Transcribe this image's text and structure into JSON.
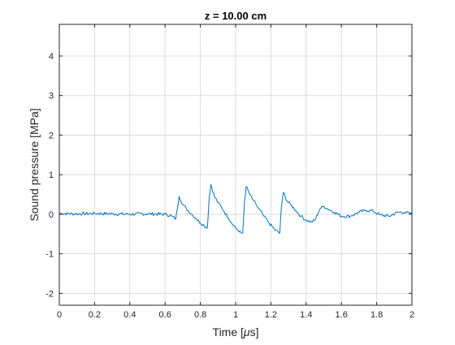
{
  "colors": {
    "line": "#0072BD",
    "grid": "#DCDCDC",
    "axis": "#262626",
    "background": "#FFFFFF"
  },
  "chart_data": {
    "type": "line",
    "title": "z = 10.00 cm",
    "xlabel_prefix": "Time [",
    "xlabel_mu": "μ",
    "xlabel_suffix": "s]",
    "ylabel": "Sound pressure [MPa]",
    "xlim": [
      0,
      2
    ],
    "ylim": [
      -2.3,
      4.8
    ],
    "xticks": [
      0,
      0.2,
      0.4,
      0.6,
      0.8,
      1,
      1.2,
      1.4,
      1.6,
      1.8,
      2
    ],
    "xtick_labels": [
      "0",
      "0.2",
      "0.4",
      "0.6",
      "0.8",
      "1",
      "1.2",
      "1.4",
      "1.6",
      "1.8",
      "2"
    ],
    "yticks": [
      -2,
      -1,
      0,
      1,
      2,
      3,
      4
    ],
    "ytick_labels": [
      "-2",
      "-1",
      "0",
      "1",
      "2",
      "3",
      "4"
    ],
    "grid": true,
    "legend": "none",
    "series": [
      {
        "x": [
          0,
          0.1,
          0.2,
          0.3,
          0.4,
          0.5,
          0.6,
          0.64,
          0.66,
          0.67,
          0.68,
          0.7,
          0.72,
          0.75,
          0.78,
          0.8,
          0.82,
          0.84,
          0.85,
          0.86,
          0.88,
          0.9,
          0.93,
          0.96,
          0.99,
          1.02,
          1.04,
          1.05,
          1.06,
          1.08,
          1.1,
          1.13,
          1.16,
          1.19,
          1.22,
          1.25,
          1.26,
          1.27,
          1.29,
          1.31,
          1.34,
          1.37,
          1.4,
          1.43,
          1.45,
          1.47,
          1.48,
          1.5,
          1.53,
          1.56,
          1.6,
          1.65,
          1.7,
          1.74,
          1.78,
          1.82,
          1.87,
          1.92,
          1.96,
          2.0
        ],
        "y": [
          0.02,
          0.01,
          0.02,
          0.01,
          0.0,
          0.01,
          0.0,
          -0.05,
          -0.12,
          0.15,
          0.45,
          0.25,
          0.15,
          0.0,
          -0.12,
          -0.22,
          -0.28,
          -0.34,
          0.4,
          0.75,
          0.45,
          0.3,
          0.1,
          -0.1,
          -0.28,
          -0.45,
          -0.48,
          0.3,
          0.7,
          0.5,
          0.35,
          0.15,
          -0.05,
          -0.22,
          -0.38,
          -0.48,
          0.2,
          0.55,
          0.35,
          0.25,
          0.1,
          -0.05,
          -0.15,
          -0.2,
          -0.15,
          0.05,
          0.15,
          0.2,
          0.12,
          0.05,
          -0.05,
          -0.05,
          0.05,
          0.1,
          0.08,
          -0.02,
          -0.05,
          0.05,
          0.05,
          0.0
        ]
      }
    ]
  }
}
